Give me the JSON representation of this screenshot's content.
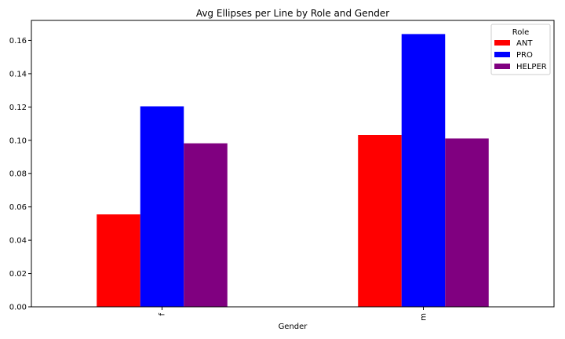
{
  "chart_data": {
    "type": "bar",
    "title": "Avg Ellipses per Line by Role and Gender",
    "xlabel": "Gender",
    "ylabel": "",
    "categories": [
      "f",
      "m"
    ],
    "series": [
      {
        "name": "ANT",
        "color": "#ff0000",
        "values": [
          0.0555,
          0.1032
        ]
      },
      {
        "name": "PRO",
        "color": "#0000ff",
        "values": [
          0.1204,
          0.1638
        ]
      },
      {
        "name": "HELPER",
        "color": "#800080",
        "values": [
          0.0982,
          0.1011
        ]
      }
    ],
    "ylim": [
      0,
      0.172
    ],
    "yticks": [
      "0.00",
      "0.02",
      "0.04",
      "0.06",
      "0.08",
      "0.10",
      "0.12",
      "0.14",
      "0.16"
    ],
    "grid": false,
    "legend": {
      "title": "Role",
      "placement": "top-right"
    }
  }
}
